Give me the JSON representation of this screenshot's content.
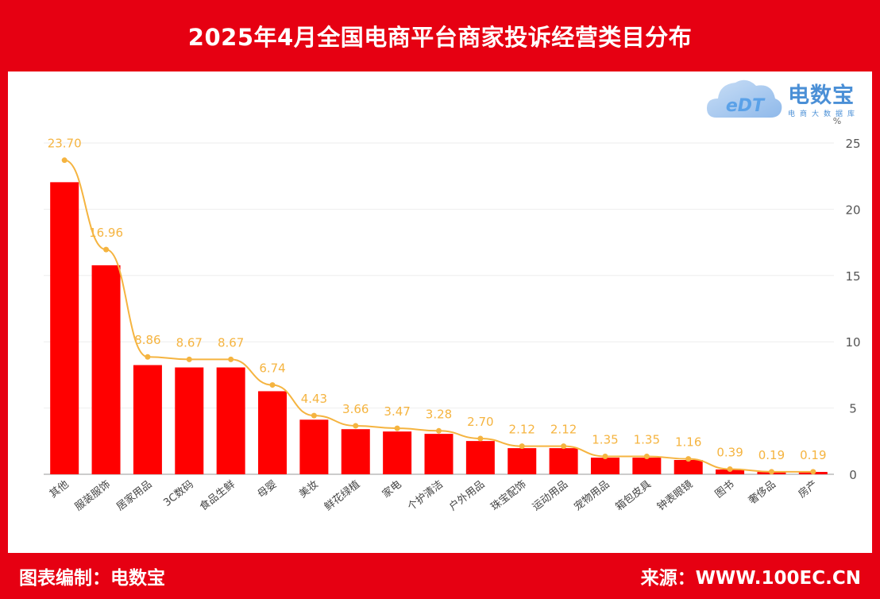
{
  "header": {
    "title": "2025年4月全国电商平台商家投诉经营类目分布"
  },
  "footer": {
    "left": "图表编制：电数宝",
    "right": "来源：WWW.100EC.CN"
  },
  "logo": {
    "mark": "eDT",
    "name": "电数宝",
    "sub": "电商大数据库"
  },
  "colors": {
    "bar": "#ff0000",
    "line": "#f5b440",
    "label": "#f5b440",
    "frame": "#e60012"
  },
  "chart_data": {
    "type": "bar",
    "title": "2025年4月全国电商平台商家投诉经营类目分布",
    "unit": "%",
    "categories": [
      "其他",
      "服装服饰",
      "居家用品",
      "3C数码",
      "食品生鲜",
      "母婴",
      "美妆",
      "鲜花绿植",
      "家电",
      "个护清洁",
      "户外用品",
      "珠宝配饰",
      "运动用品",
      "宠物用品",
      "箱包皮具",
      "钟表眼镜",
      "图书",
      "奢侈品",
      "房产"
    ],
    "values": [
      23.7,
      16.96,
      8.86,
      8.67,
      8.67,
      6.74,
      4.43,
      3.66,
      3.47,
      3.28,
      2.7,
      2.12,
      2.12,
      1.35,
      1.35,
      1.16,
      0.39,
      0.19,
      0.19
    ],
    "value_labels": [
      "23.70",
      "16.96",
      "8.86",
      "8.67",
      "8.67",
      "6.74",
      "4.43",
      "3.66",
      "3.47",
      "3.28",
      "2.70",
      "2.12",
      "2.12",
      "1.35",
      "1.35",
      "1.16",
      "0.39",
      "0.19",
      "0.19"
    ],
    "yticks": [
      "0",
      "5",
      "10",
      "15",
      "20",
      "25"
    ],
    "ylim": [
      0,
      25
    ],
    "y_axis_position": "right",
    "grid": true,
    "line_overlay": true
  }
}
